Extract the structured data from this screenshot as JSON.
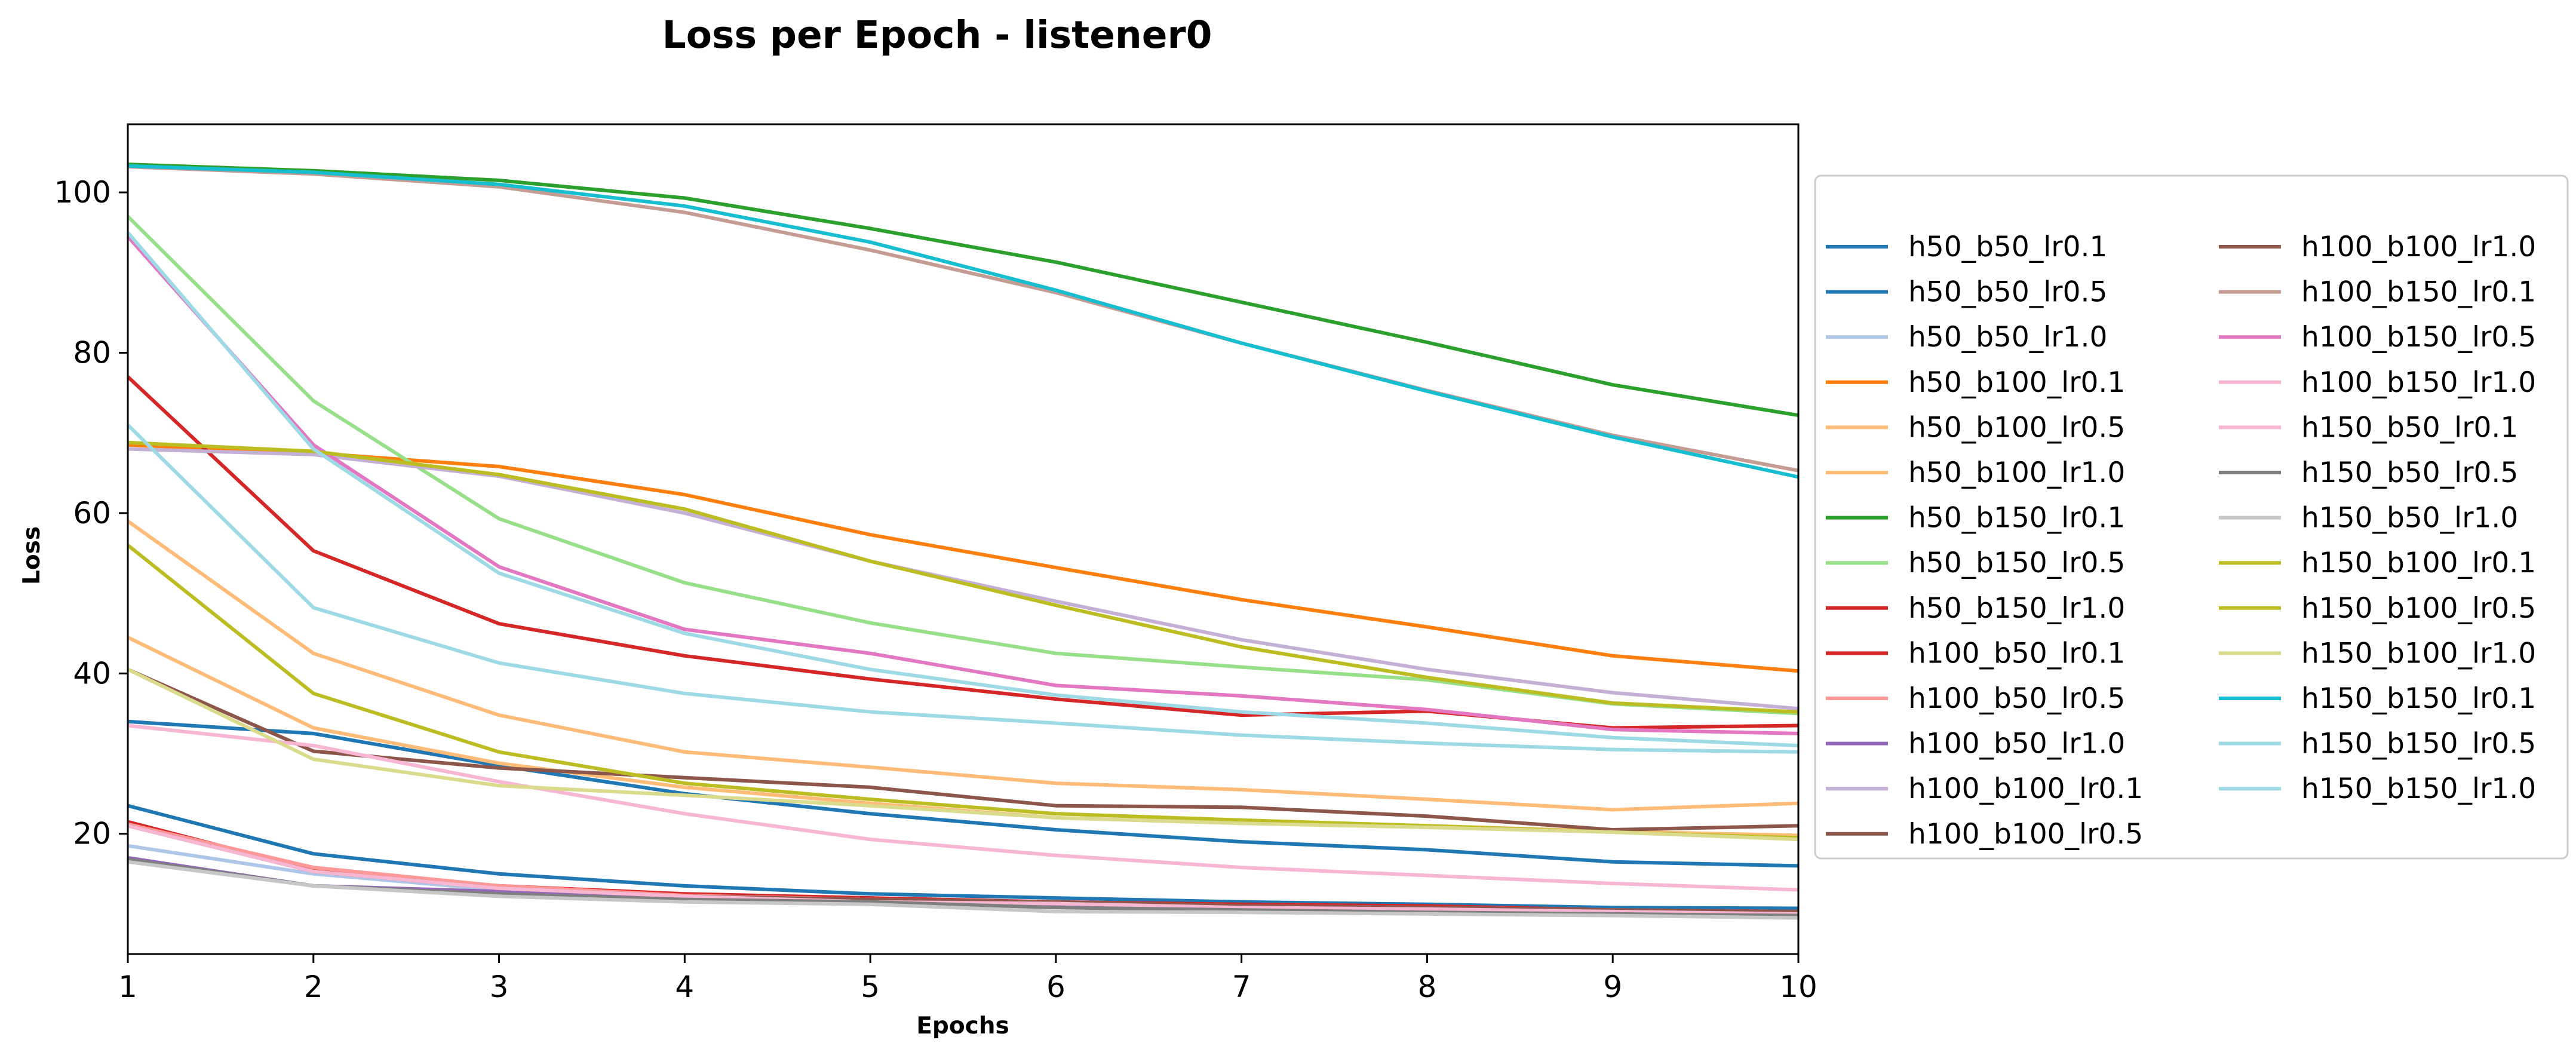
{
  "chart_data": {
    "type": "line",
    "title": "Loss per Epoch - listener0",
    "xlabel": "Epochs",
    "ylabel": "Loss",
    "x": [
      1,
      2,
      3,
      4,
      5,
      6,
      7,
      8,
      9,
      10
    ],
    "xticks": [
      "1",
      "2",
      "3",
      "4",
      "5",
      "6",
      "7",
      "8",
      "9",
      "10"
    ],
    "xlim": [
      1,
      10
    ],
    "ylim": [
      5,
      108.5
    ],
    "yticks": [
      "20",
      "40",
      "60",
      "80",
      "100"
    ],
    "grid": false,
    "legend_position": "right",
    "legend_columns": 2,
    "series": [
      {
        "name": "h50_b50_lr0.1",
        "color": "#1f77b4",
        "values": [
          34.0,
          32.5,
          28.5,
          25.0,
          22.5,
          20.5,
          19.0,
          18.0,
          16.5,
          16.0
        ]
      },
      {
        "name": "h50_b50_lr0.5",
        "color": "#1f77b4",
        "values": [
          23.5,
          17.5,
          15.0,
          13.5,
          12.5,
          12.0,
          11.5,
          11.2,
          10.8,
          10.7
        ]
      },
      {
        "name": "h50_b50_lr1.0",
        "color": "#aec7e8",
        "values": [
          18.5,
          15.0,
          13.0,
          12.0,
          11.5,
          11.0,
          10.5,
          10.3,
          10.0,
          9.8
        ]
      },
      {
        "name": "h50_b100_lr0.1",
        "color": "#ff7f0e",
        "values": [
          68.5,
          67.5,
          65.8,
          62.3,
          57.3,
          53.2,
          49.2,
          45.8,
          42.2,
          40.3
        ]
      },
      {
        "name": "h50_b100_lr0.5",
        "color": "#ffbb78",
        "values": [
          59.0,
          42.5,
          34.8,
          30.2,
          28.3,
          26.3,
          25.5,
          24.3,
          23.0,
          23.8
        ]
      },
      {
        "name": "h50_b100_lr1.0",
        "color": "#ffbb78",
        "values": [
          44.5,
          33.2,
          28.8,
          25.8,
          23.8,
          22.0,
          21.3,
          21.0,
          20.3,
          19.8
        ]
      },
      {
        "name": "h50_b150_lr0.1",
        "color": "#2ca02c",
        "values": [
          103.5,
          102.7,
          101.5,
          99.3,
          95.5,
          91.3,
          86.3,
          81.3,
          76.0,
          72.2
        ]
      },
      {
        "name": "h50_b150_lr0.5",
        "color": "#98df8a",
        "values": [
          97.0,
          74.0,
          59.3,
          51.3,
          46.3,
          42.5,
          40.8,
          39.2,
          36.2,
          35.0
        ]
      },
      {
        "name": "h50_b150_lr1.0",
        "color": "#d62728",
        "values": [
          21.5,
          15.5,
          13.5,
          12.5,
          12.0,
          11.5,
          11.2,
          11.0,
          10.5,
          10.3
        ]
      },
      {
        "name": "h100_b50_lr0.1",
        "color": "#d62728",
        "values": [
          77.0,
          55.3,
          46.2,
          42.2,
          39.3,
          36.8,
          34.8,
          35.3,
          33.2,
          33.5
        ]
      },
      {
        "name": "h100_b50_lr0.5",
        "color": "#ff9896",
        "values": [
          21.2,
          15.8,
          13.5,
          12.3,
          11.8,
          11.5,
          11.0,
          10.8,
          10.5,
          10.2
        ]
      },
      {
        "name": "h100_b50_lr1.0",
        "color": "#9467bd",
        "values": [
          17.0,
          13.5,
          12.8,
          12.0,
          11.5,
          11.2,
          11.0,
          10.8,
          10.5,
          10.3
        ]
      },
      {
        "name": "h100_b100_lr0.1",
        "color": "#c5b0d5",
        "values": [
          68.0,
          67.3,
          64.6,
          60.0,
          54.0,
          49.0,
          44.2,
          40.5,
          37.6,
          35.6
        ]
      },
      {
        "name": "h100_b100_lr0.5",
        "color": "#8c564b",
        "values": [
          40.5,
          30.3,
          28.2,
          27.0,
          25.8,
          23.5,
          23.3,
          22.2,
          20.5,
          21.0
        ]
      },
      {
        "name": "h100_b100_lr1.0",
        "color": "#8c564b",
        "values": [
          21.0,
          15.3,
          13.2,
          12.2,
          11.8,
          11.5,
          11.0,
          10.8,
          10.5,
          10.3
        ]
      },
      {
        "name": "h100_b150_lr0.1",
        "color": "#c49c94",
        "values": [
          103.2,
          102.3,
          100.7,
          97.5,
          92.8,
          87.5,
          81.2,
          75.3,
          69.7,
          65.3
        ]
      },
      {
        "name": "h100_b150_lr0.5",
        "color": "#e377c2",
        "values": [
          94.5,
          68.5,
          53.3,
          45.5,
          42.5,
          38.5,
          37.2,
          35.5,
          33.0,
          32.5
        ]
      },
      {
        "name": "h100_b150_lr1.0",
        "color": "#f7b6d2",
        "values": [
          21.0,
          15.3,
          13.2,
          12.2,
          11.5,
          11.3,
          10.8,
          10.6,
          10.3,
          10.0
        ]
      },
      {
        "name": "h150_b50_lr0.1",
        "color": "#f7b6d2",
        "values": [
          33.5,
          31.0,
          26.5,
          22.5,
          19.3,
          17.3,
          15.8,
          14.8,
          13.8,
          13.0
        ]
      },
      {
        "name": "h150_b50_lr0.5",
        "color": "#7f7f7f",
        "values": [
          16.8,
          13.5,
          12.5,
          11.8,
          11.5,
          10.8,
          10.5,
          10.2,
          10.0,
          9.8
        ]
      },
      {
        "name": "h150_b50_lr1.0",
        "color": "#c7c7c7",
        "values": [
          16.5,
          13.5,
          12.2,
          11.5,
          11.2,
          10.3,
          10.2,
          10.0,
          9.8,
          9.5
        ]
      },
      {
        "name": "h150_b100_lr0.1",
        "color": "#bcbd22",
        "values": [
          68.8,
          67.7,
          64.8,
          60.5,
          54.0,
          48.5,
          43.3,
          39.5,
          36.3,
          35.2
        ]
      },
      {
        "name": "h150_b100_lr0.5",
        "color": "#bcbd22",
        "values": [
          56.0,
          37.5,
          30.2,
          26.3,
          24.3,
          22.5,
          21.7,
          21.0,
          20.2,
          19.5
        ]
      },
      {
        "name": "h150_b100_lr1.0",
        "color": "#dbdb8d",
        "values": [
          40.5,
          29.3,
          26.0,
          24.8,
          23.5,
          22.0,
          21.3,
          20.8,
          20.2,
          19.3
        ]
      },
      {
        "name": "h150_b150_lr0.1",
        "color": "#17becf",
        "values": [
          103.3,
          102.5,
          101.0,
          98.3,
          93.8,
          87.8,
          81.2,
          75.2,
          69.5,
          64.5
        ]
      },
      {
        "name": "h150_b150_lr0.5",
        "color": "#9edae5",
        "values": [
          71.0,
          48.2,
          41.3,
          37.5,
          35.2,
          33.8,
          32.3,
          31.3,
          30.5,
          30.2
        ]
      },
      {
        "name": "h150_b150_lr1.0",
        "color": "#9edae5",
        "values": [
          95.0,
          68.0,
          52.5,
          45.0,
          40.5,
          37.3,
          35.2,
          33.8,
          32.0,
          31.0
        ]
      }
    ]
  }
}
